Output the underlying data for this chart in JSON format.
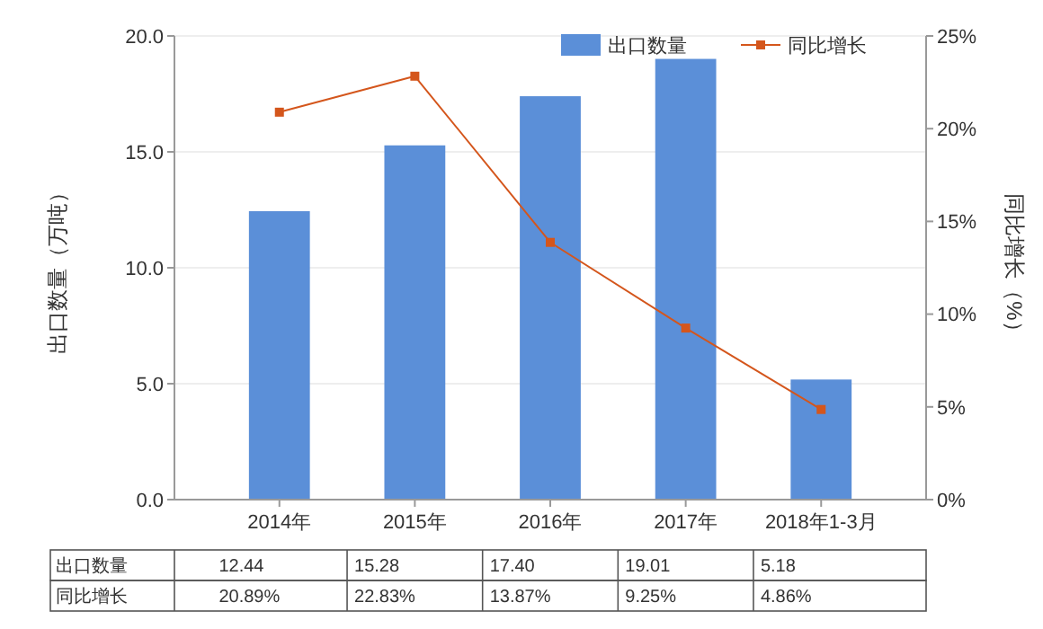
{
  "chart_data": {
    "type": "bar",
    "categories": [
      "2014年",
      "2015年",
      "2016年",
      "2017年",
      "2018年1-3月"
    ],
    "ylabel": "出口数量（万吨）",
    "y2label": "同比增长（%）",
    "ylim": [
      0,
      20
    ],
    "yticks": [
      {
        "value": 0,
        "label": "0.0"
      },
      {
        "value": 5,
        "label": "5.0"
      },
      {
        "value": 10,
        "label": "10.0"
      },
      {
        "value": 15,
        "label": "15.0"
      },
      {
        "value": 20,
        "label": "20.0"
      }
    ],
    "y2lim": [
      0,
      25
    ],
    "y2ticks": [
      {
        "value": 0,
        "label": "0%"
      },
      {
        "value": 5,
        "label": "5%"
      },
      {
        "value": 10,
        "label": "10%"
      },
      {
        "value": 15,
        "label": "15%"
      },
      {
        "value": 20,
        "label": "20%"
      },
      {
        "value": 25,
        "label": "25%"
      }
    ],
    "grid": "y",
    "legend": "top right",
    "marker": "square",
    "series": [
      {
        "name": "出口数量",
        "color": "#5b8fd8",
        "values": [
          12.44,
          15.28,
          17.4,
          19.01,
          5.18
        ],
        "value_labels": [
          "12.44",
          "15.28",
          "17.40",
          "19.01",
          "5.18"
        ]
      },
      {
        "name": "同比增长",
        "type": "line",
        "axis": "y2",
        "color": "#d4561c",
        "values": [
          20.89,
          22.83,
          13.87,
          9.25,
          4.86
        ],
        "value_labels": [
          "20.89%",
          "22.83%",
          "13.87%",
          "9.25%",
          "4.86%"
        ]
      }
    ]
  }
}
